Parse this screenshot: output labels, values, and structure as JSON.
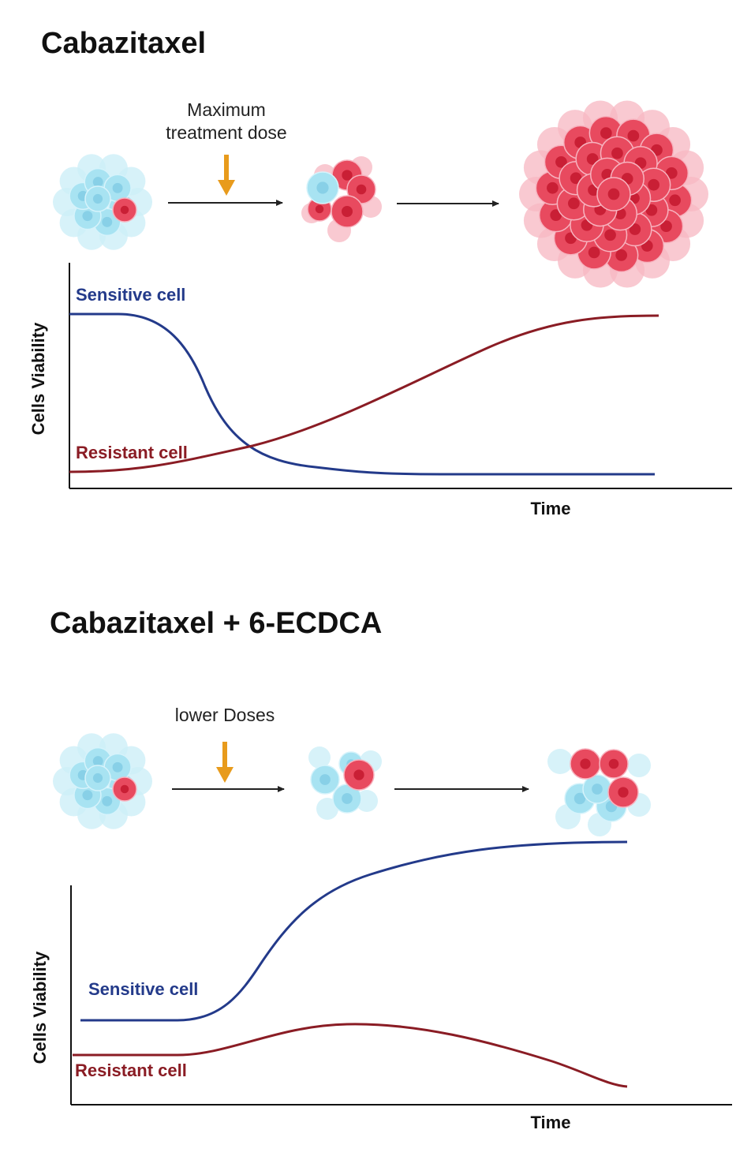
{
  "panels": [
    {
      "title": "Cabazitaxel",
      "dose_label_lines": [
        "Maximum",
        "treatment dose"
      ],
      "y_axis_label": "Cells  Viability",
      "x_axis_label": "Time",
      "sensitive_label": "Sensitive cell",
      "resistant_label": "Resistant cell",
      "sensitive_trend": "decreasing",
      "resistant_trend": "increasing"
    },
    {
      "title": "Cabazitaxel + 6-ECDCA",
      "dose_label_lines": [
        "lower Doses"
      ],
      "y_axis_label": "Cells Viability",
      "x_axis_label": "Time",
      "sensitive_label": "Sensitive cell",
      "resistant_label": "Resistant cell",
      "sensitive_trend": "increasing",
      "resistant_trend": "rise then fall"
    }
  ],
  "colors": {
    "sensitive_curve": "#233a8a",
    "resistant_curve": "#8a1c24",
    "sensitive_cell": "#a8e3f2",
    "resistant_cell": "#e84a5f",
    "arrow": "#e89b1c"
  }
}
